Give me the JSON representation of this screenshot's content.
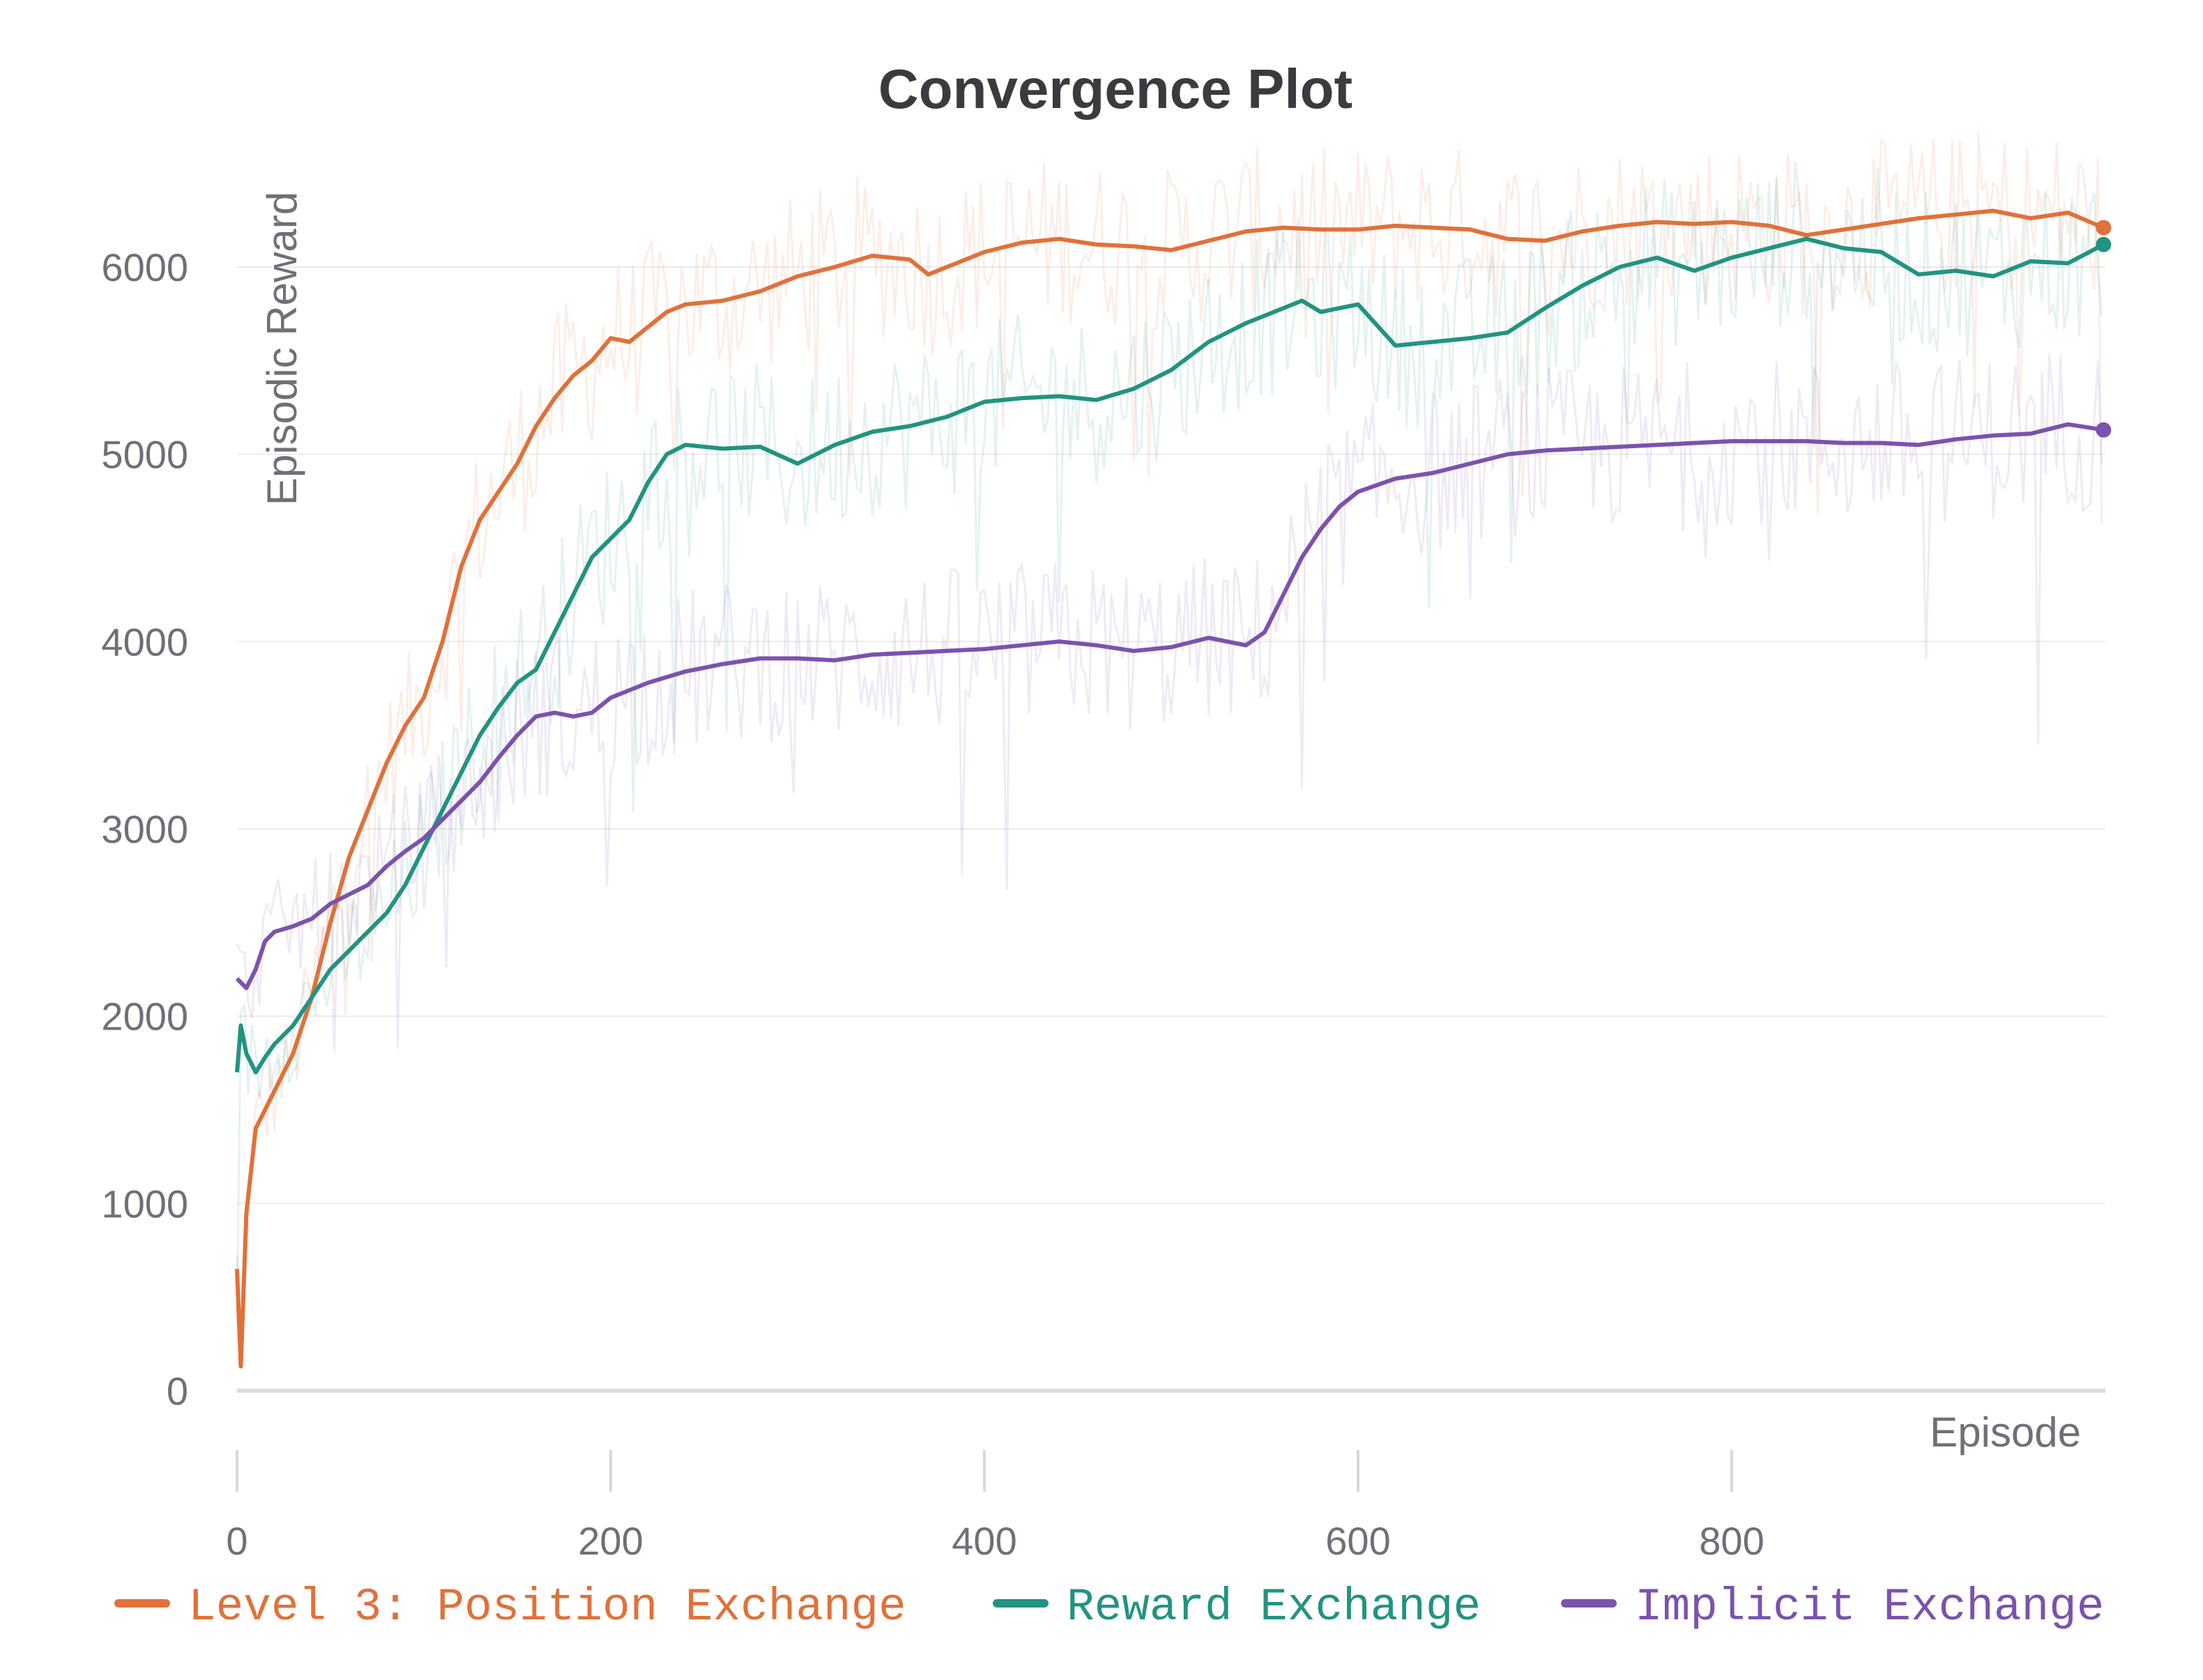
{
  "chart_data": {
    "type": "line",
    "title": "Convergence Plot",
    "xlabel": "Episode",
    "ylabel": "Episodic Reward",
    "xlim": [
      0,
      1000
    ],
    "ylim": [
      -500,
      6500
    ],
    "xticks": [
      0,
      200,
      400,
      600,
      800
    ],
    "xtick_labels": [
      "0",
      "200",
      "400",
      "600",
      "800"
    ],
    "yticks": [
      0,
      1000,
      2000,
      3000,
      4000,
      5000,
      6000
    ],
    "ytick_labels": [
      "0",
      "1000",
      "2000",
      "3000",
      "4000",
      "5000",
      "6000"
    ],
    "grid": true,
    "legend_position": "bottom",
    "series": [
      {
        "name": "Level 3: Position Exchange",
        "color": "#e0713a",
        "x": [
          0,
          2,
          5,
          10,
          15,
          20,
          30,
          40,
          50,
          60,
          70,
          80,
          90,
          100,
          110,
          120,
          130,
          140,
          150,
          160,
          170,
          180,
          190,
          200,
          210,
          220,
          230,
          240,
          260,
          280,
          300,
          320,
          340,
          360,
          370,
          380,
          400,
          420,
          440,
          460,
          480,
          500,
          520,
          540,
          560,
          580,
          600,
          620,
          640,
          660,
          680,
          700,
          720,
          740,
          760,
          780,
          800,
          820,
          840,
          860,
          880,
          900,
          920,
          940,
          960,
          980,
          999
        ],
        "y": [
          650,
          130,
          950,
          1400,
          1500,
          1600,
          1800,
          2100,
          2500,
          2850,
          3100,
          3350,
          3550,
          3700,
          4000,
          4400,
          4650,
          4800,
          4950,
          5150,
          5300,
          5420,
          5500,
          5620,
          5600,
          5680,
          5760,
          5800,
          5820,
          5870,
          5950,
          6000,
          6060,
          6040,
          5960,
          6000,
          6080,
          6130,
          6150,
          6120,
          6110,
          6090,
          6140,
          6190,
          6210,
          6200,
          6200,
          6220,
          6210,
          6200,
          6150,
          6140,
          6190,
          6220,
          6240,
          6230,
          6240,
          6220,
          6170,
          6200,
          6230,
          6260,
          6280,
          6300,
          6260,
          6290,
          6210
        ]
      },
      {
        "name": "Reward Exchange",
        "color": "#229381",
        "x": [
          0,
          2,
          5,
          10,
          15,
          20,
          30,
          40,
          50,
          60,
          70,
          80,
          90,
          100,
          110,
          120,
          130,
          140,
          150,
          160,
          170,
          180,
          190,
          200,
          210,
          220,
          230,
          240,
          250,
          260,
          280,
          300,
          320,
          340,
          360,
          380,
          400,
          420,
          440,
          460,
          480,
          500,
          520,
          540,
          560,
          570,
          580,
          600,
          620,
          640,
          660,
          680,
          700,
          720,
          740,
          760,
          780,
          800,
          820,
          840,
          860,
          880,
          900,
          920,
          940,
          960,
          980,
          999
        ],
        "y": [
          1700,
          1950,
          1800,
          1700,
          1780,
          1850,
          1950,
          2100,
          2250,
          2350,
          2450,
          2550,
          2700,
          2900,
          3100,
          3300,
          3500,
          3650,
          3780,
          3850,
          4050,
          4250,
          4450,
          4550,
          4650,
          4850,
          5000,
          5050,
          5040,
          5030,
          5040,
          4950,
          5050,
          5120,
          5150,
          5200,
          5280,
          5300,
          5310,
          5290,
          5350,
          5450,
          5600,
          5700,
          5780,
          5820,
          5760,
          5800,
          5580,
          5600,
          5620,
          5650,
          5780,
          5900,
          6000,
          6050,
          5980,
          6050,
          6100,
          6150,
          6100,
          6080,
          5960,
          5980,
          5950,
          6030,
          6020,
          6120
        ]
      },
      {
        "name": "Implicit Exchange",
        "color": "#7b52ae",
        "x": [
          0,
          5,
          10,
          15,
          20,
          30,
          40,
          50,
          60,
          70,
          80,
          90,
          100,
          110,
          120,
          130,
          140,
          150,
          160,
          170,
          180,
          190,
          200,
          220,
          240,
          260,
          280,
          300,
          320,
          340,
          360,
          380,
          400,
          420,
          440,
          460,
          480,
          500,
          520,
          540,
          550,
          560,
          570,
          580,
          590,
          600,
          620,
          640,
          660,
          680,
          700,
          720,
          740,
          760,
          780,
          800,
          820,
          840,
          860,
          880,
          900,
          920,
          940,
          960,
          980,
          999
        ],
        "y": [
          2200,
          2150,
          2250,
          2400,
          2450,
          2480,
          2520,
          2600,
          2650,
          2700,
          2800,
          2880,
          2950,
          3050,
          3150,
          3250,
          3380,
          3500,
          3600,
          3620,
          3600,
          3620,
          3700,
          3780,
          3840,
          3880,
          3910,
          3910,
          3900,
          3930,
          3940,
          3950,
          3960,
          3980,
          4000,
          3980,
          3950,
          3970,
          4020,
          3980,
          4050,
          4250,
          4450,
          4600,
          4720,
          4800,
          4870,
          4900,
          4950,
          5000,
          5020,
          5030,
          5040,
          5050,
          5060,
          5070,
          5070,
          5070,
          5060,
          5060,
          5050,
          5080,
          5100,
          5110,
          5160,
          5130
        ]
      }
    ]
  }
}
